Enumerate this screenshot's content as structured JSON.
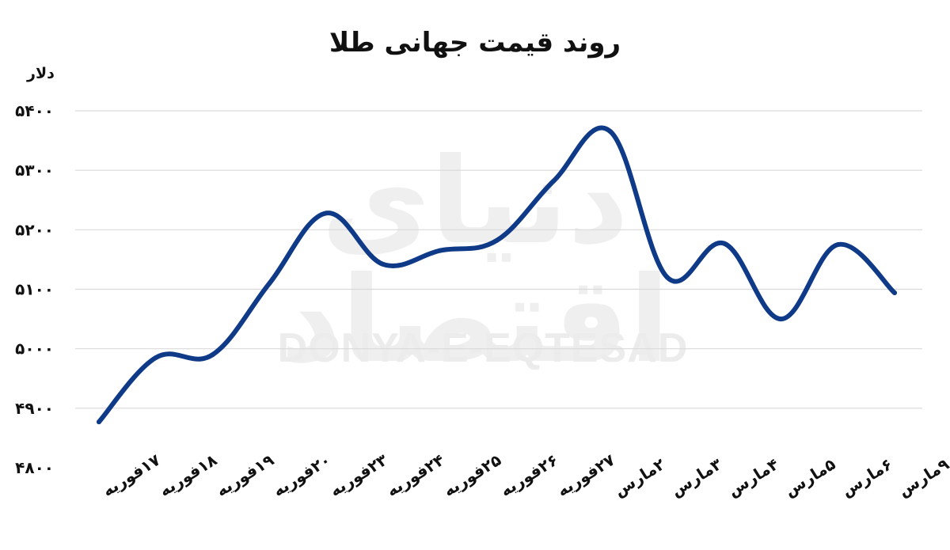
{
  "watermark": {
    "logo": "دنیای اقتصاد",
    "latin": "DONYA-E-EQTESAD"
  },
  "chart_data": {
    "type": "line",
    "title": "روند قیمت جهانی طلا",
    "ylabel": "دلار",
    "xlabel": "",
    "ylim": [
      4800,
      5400
    ],
    "yticks": [
      4800,
      4900,
      5000,
      5100,
      5200,
      5300,
      5400
    ],
    "ytick_labels": [
      "۴۸۰۰",
      "۴۹۰۰",
      "۵۰۰۰",
      "۵۱۰۰",
      "۵۲۰۰",
      "۵۳۰۰",
      "۵۴۰۰"
    ],
    "grid": true,
    "categories": [
      "۱۷فوریه",
      "۱۸فوریه",
      "۱۹فوریه",
      "۲۰فوریه",
      "۲۳فوریه",
      "۲۴فوریه",
      "۲۵فوریه",
      "۲۶فوریه",
      "۲۷فوریه",
      "۲مارس",
      "۳مارس",
      "۴مارس",
      "۵مارس",
      "۶مارس",
      "۹مارس"
    ],
    "series": [
      {
        "values": [
          4877,
          4985,
          4990,
          5110,
          5228,
          5142,
          5165,
          5182,
          5282,
          5365,
          5120,
          5177,
          5050,
          5175,
          5094
        ]
      }
    ],
    "line_color": "#0f3a87"
  }
}
